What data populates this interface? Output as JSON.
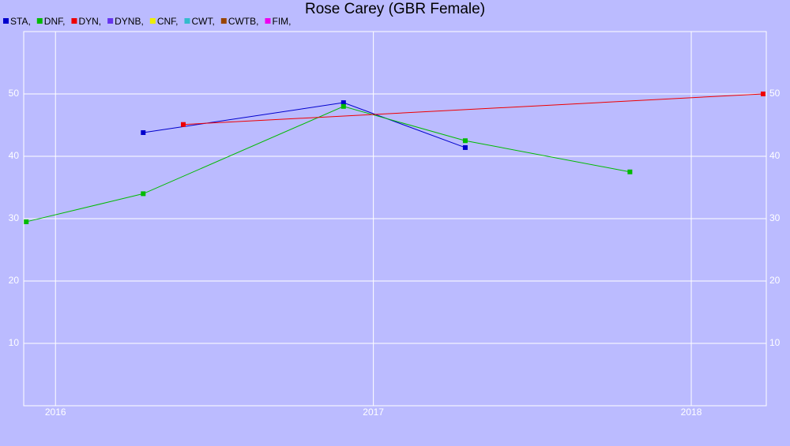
{
  "chart_data": {
    "type": "line",
    "title": "Rose Carey (GBR Female)",
    "xlim": [
      2015.9,
      2018.236
    ],
    "xticks": [
      2016,
      2017,
      2018
    ],
    "ylim": [
      0,
      60
    ],
    "yticks": [
      10,
      20,
      30,
      40,
      50
    ],
    "grid": true,
    "series": [
      {
        "name": "STA,",
        "color": "#0000cc",
        "x": [
          2016.276,
          2016.906,
          2017.289
        ],
        "values": [
          43.8,
          48.6,
          41.4
        ]
      },
      {
        "name": "DNF,",
        "color": "#00bb00",
        "x": [
          2015.908,
          2016.276,
          2016.906,
          2017.289,
          2017.807
        ],
        "values": [
          29.5,
          34.0,
          48.0,
          42.5,
          37.5
        ]
      },
      {
        "name": "DYN,",
        "color": "#ee0000",
        "x": [
          2016.402,
          2018.226
        ],
        "values": [
          45.1,
          50
        ]
      },
      {
        "name": "DYNB,",
        "color": "#6633ee",
        "x": [],
        "values": []
      },
      {
        "name": "CNF,",
        "color": "#eeee00",
        "x": [],
        "values": []
      },
      {
        "name": "CWT,",
        "color": "#33bbcc",
        "x": [],
        "values": []
      },
      {
        "name": "CWTB,",
        "color": "#994400",
        "x": [],
        "values": []
      },
      {
        "name": "FIM,",
        "color": "#ee00ee",
        "x": [],
        "values": []
      }
    ]
  }
}
